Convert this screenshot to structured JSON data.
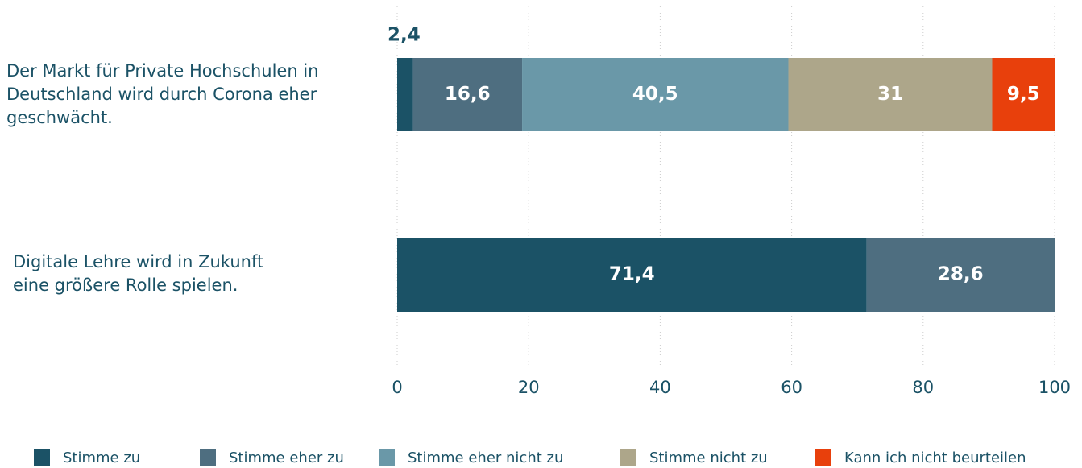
{
  "chart_data": {
    "type": "stacked_bar_horizontal",
    "categories": [
      "Der Markt für Private Hochschulen in Deutschland wird durch Corona eher geschwächt.",
      "Digitale Lehre wird in Zukunft eine größere Rolle spielen."
    ],
    "series": [
      {
        "name": "Stimme zu",
        "color": "#1b5266",
        "values": [
          2.4,
          71.4
        ],
        "value_labels": [
          "2,4",
          "71,4"
        ]
      },
      {
        "name": "Stimme eher zu",
        "color": "#4e6e80",
        "values": [
          16.6,
          28.6
        ],
        "value_labels": [
          "16,6",
          "28,6"
        ]
      },
      {
        "name": "Stimme eher nicht zu",
        "color": "#6a98a8",
        "values": [
          40.5,
          null
        ],
        "value_labels": [
          "40,5",
          null
        ]
      },
      {
        "name": "Stimme nicht zu",
        "color": "#ada68a",
        "values": [
          31,
          null
        ],
        "value_labels": [
          "31",
          null
        ]
      },
      {
        "name": "Kann ich nicht beurteilen",
        "color": "#e8400c",
        "values": [
          9.5,
          null
        ],
        "value_labels": [
          "9,5",
          null
        ]
      }
    ],
    "xlim": [
      0,
      100
    ],
    "xticks": [
      0,
      20,
      40,
      60,
      80,
      100
    ],
    "grid": true,
    "legend": "bottom"
  }
}
